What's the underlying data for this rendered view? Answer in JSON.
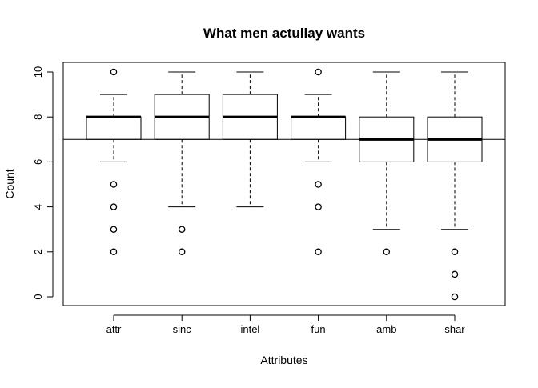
{
  "chart_data": {
    "type": "boxplot",
    "title": "What men actullay wants",
    "xlabel": "Attributes",
    "ylabel": "Count",
    "categories": [
      "attr",
      "sinc",
      "intel",
      "fun",
      "amb",
      "shar"
    ],
    "ylim": [
      0,
      10
    ],
    "yticks": [
      0,
      2,
      4,
      6,
      8,
      10
    ],
    "reference_line_y": 7,
    "grid": false,
    "legend": "none",
    "boxes": [
      {
        "category": "attr",
        "whisker_low": 6,
        "q1": 7,
        "median": 8,
        "q3": 8,
        "whisker_high": 9,
        "outliers": [
          2,
          3,
          4,
          5,
          10
        ]
      },
      {
        "category": "sinc",
        "whisker_low": 4,
        "q1": 7,
        "median": 8,
        "q3": 9,
        "whisker_high": 10,
        "outliers": [
          2,
          3
        ]
      },
      {
        "category": "intel",
        "whisker_low": 4,
        "q1": 7,
        "median": 8,
        "q3": 9,
        "whisker_high": 10,
        "outliers": []
      },
      {
        "category": "fun",
        "whisker_low": 6,
        "q1": 7,
        "median": 8,
        "q3": 8,
        "whisker_high": 9,
        "outliers": [
          2,
          4,
          5,
          10
        ]
      },
      {
        "category": "amb",
        "whisker_low": 3,
        "q1": 6,
        "median": 7,
        "q3": 8,
        "whisker_high": 10,
        "outliers": [
          2
        ]
      },
      {
        "category": "shar",
        "whisker_low": 3,
        "q1": 6,
        "median": 7,
        "q3": 8,
        "whisker_high": 10,
        "outliers": [
          0,
          1,
          2
        ]
      }
    ]
  }
}
